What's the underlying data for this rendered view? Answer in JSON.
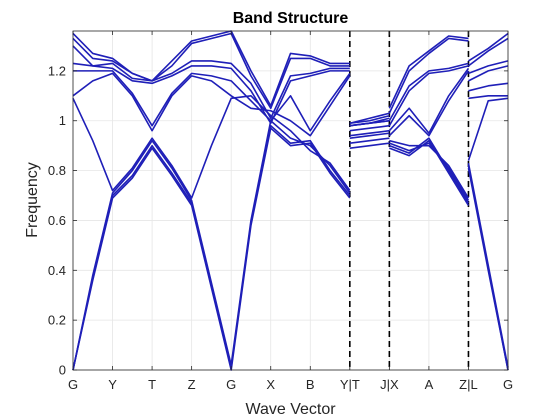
{
  "chart_data": {
    "type": "line",
    "title": "Band Structure",
    "xlabel": "Wave Vector",
    "ylabel": "Frequency",
    "ylim": [
      0,
      1.36
    ],
    "yticks": [
      0,
      0.2,
      0.4,
      0.6,
      0.8,
      1,
      1.2
    ],
    "ytick_labels": [
      "0",
      "0.2",
      "0.4",
      "0.6",
      "0.8",
      "1",
      "1.2"
    ],
    "x_points": [
      0,
      1,
      2,
      3,
      4,
      5,
      6,
      7,
      8,
      9,
      10,
      11
    ],
    "x_tick_labels": [
      "G",
      "Y",
      "T",
      "Z",
      "G",
      "X",
      "B",
      "Y|T",
      "J|X",
      "A",
      "Z|L",
      "G"
    ],
    "discontinuities": [
      7,
      8,
      10
    ],
    "grid": true,
    "line_color": "#1f1fb8",
    "series": [
      {
        "values": [
          [
            0,
            0.0
          ],
          [
            0.5,
            0.36
          ],
          [
            1,
            0.69
          ],
          [
            1.5,
            0.77
          ],
          [
            2,
            0.89
          ],
          [
            2.5,
            0.78
          ],
          [
            3,
            0.66
          ],
          [
            3.5,
            0.33
          ],
          [
            4,
            0.0
          ],
          [
            4.5,
            0.58
          ],
          [
            5,
            0.97
          ],
          [
            5.5,
            0.9
          ],
          [
            6,
            0.91
          ],
          [
            6.5,
            0.79
          ],
          [
            7,
            0.69
          ],
          [
            7,
            0.93
          ],
          [
            7.5,
            0.94
          ],
          [
            8,
            0.95
          ],
          [
            8,
            0.89
          ],
          [
            8.5,
            0.86
          ],
          [
            9,
            0.92
          ],
          [
            9.5,
            0.79
          ],
          [
            10,
            0.66
          ],
          [
            10,
            0.81
          ],
          [
            10.5,
            0.4
          ],
          [
            11,
            0.0
          ]
        ]
      },
      {
        "values": [
          [
            0,
            0.0
          ],
          [
            0.5,
            0.37
          ],
          [
            1,
            0.7
          ],
          [
            1.5,
            0.78
          ],
          [
            2,
            0.9
          ],
          [
            2.5,
            0.79
          ],
          [
            3,
            0.67
          ],
          [
            3.5,
            0.34
          ],
          [
            4,
            0.01
          ],
          [
            4.5,
            0.59
          ],
          [
            5,
            0.98
          ],
          [
            5.5,
            0.91
          ],
          [
            6,
            0.92
          ],
          [
            6.5,
            0.8
          ],
          [
            7,
            0.7
          ],
          [
            7,
            0.94
          ],
          [
            7.5,
            0.95
          ],
          [
            8,
            0.96
          ],
          [
            8,
            0.9
          ],
          [
            8.5,
            0.87
          ],
          [
            9,
            0.93
          ],
          [
            9.5,
            0.8
          ],
          [
            10,
            0.67
          ],
          [
            10,
            0.82
          ],
          [
            10.5,
            0.41
          ],
          [
            11,
            0.0
          ]
        ]
      },
      {
        "values": [
          [
            0,
            0.0
          ],
          [
            0.5,
            0.38
          ],
          [
            1,
            0.71
          ],
          [
            1.5,
            0.8
          ],
          [
            2,
            0.92
          ],
          [
            2.5,
            0.81
          ],
          [
            3,
            0.68
          ],
          [
            3.5,
            0.35
          ],
          [
            4,
            0.02
          ],
          [
            4.5,
            0.6
          ],
          [
            5,
            1.0
          ],
          [
            5.5,
            0.93
          ],
          [
            6,
            0.9
          ],
          [
            6.5,
            0.82
          ],
          [
            7,
            0.71
          ],
          [
            7,
            0.96
          ],
          [
            7.5,
            0.97
          ],
          [
            8,
            0.98
          ],
          [
            8,
            0.91
          ],
          [
            8.5,
            0.88
          ],
          [
            9,
            0.91
          ],
          [
            9.5,
            0.81
          ],
          [
            10,
            0.68
          ],
          [
            10,
            0.83
          ],
          [
            10.5,
            0.42
          ],
          [
            11,
            0.01
          ]
        ]
      },
      {
        "values": [
          [
            0,
            1.09
          ],
          [
            0.5,
            0.92
          ],
          [
            1,
            0.72
          ],
          [
            1.5,
            0.81
          ],
          [
            2,
            0.93
          ],
          [
            2.5,
            0.82
          ],
          [
            3,
            0.69
          ],
          [
            3.5,
            0.9
          ],
          [
            4,
            1.09
          ],
          [
            4.5,
            1.1
          ],
          [
            5,
            1.02
          ],
          [
            5.5,
            0.96
          ],
          [
            6,
            0.88
          ],
          [
            6.5,
            0.83
          ],
          [
            7,
            0.72
          ],
          [
            7,
            0.98
          ],
          [
            7.5,
            0.99
          ],
          [
            8,
            1.0
          ],
          [
            8,
            0.92
          ],
          [
            8.5,
            0.9
          ],
          [
            9,
            0.9
          ],
          [
            9.5,
            0.82
          ],
          [
            10,
            0.69
          ],
          [
            10,
            0.84
          ],
          [
            10.5,
            1.08
          ],
          [
            11,
            1.09
          ]
        ]
      },
      {
        "values": [
          [
            0,
            1.1
          ],
          [
            0.5,
            1.16
          ],
          [
            1,
            1.19
          ],
          [
            1.5,
            1.1
          ],
          [
            2,
            0.96
          ],
          [
            2.5,
            1.1
          ],
          [
            3,
            1.18
          ],
          [
            3.5,
            1.16
          ],
          [
            4,
            1.1
          ],
          [
            4.5,
            1.05
          ],
          [
            5,
            1.04
          ],
          [
            5.5,
            1.0
          ],
          [
            6,
            0.94
          ],
          [
            6.5,
            1.06
          ],
          [
            7,
            1.18
          ],
          [
            7,
            0.91
          ],
          [
            7.5,
            0.92
          ],
          [
            8,
            0.93
          ],
          [
            8,
            0.94
          ],
          [
            8.5,
            1.02
          ],
          [
            9,
            0.94
          ],
          [
            9.5,
            1.08
          ],
          [
            10,
            1.2
          ],
          [
            10,
            1.09
          ],
          [
            10.5,
            1.1
          ],
          [
            11,
            1.1
          ]
        ]
      },
      {
        "values": [
          [
            0,
            1.2
          ],
          [
            0.5,
            1.2
          ],
          [
            1,
            1.2
          ],
          [
            1.5,
            1.11
          ],
          [
            2,
            0.98
          ],
          [
            2.5,
            1.11
          ],
          [
            3,
            1.19
          ],
          [
            3.5,
            1.18
          ],
          [
            4,
            1.16
          ],
          [
            4.5,
            1.08
          ],
          [
            5,
            1.0
          ],
          [
            5.5,
            1.1
          ],
          [
            6,
            0.96
          ],
          [
            6.5,
            1.08
          ],
          [
            7,
            1.19
          ],
          [
            7,
            0.89
          ],
          [
            7.5,
            0.9
          ],
          [
            8,
            0.91
          ],
          [
            8,
            0.96
          ],
          [
            8.5,
            1.05
          ],
          [
            9,
            0.95
          ],
          [
            9.5,
            1.1
          ],
          [
            10,
            1.21
          ],
          [
            10,
            1.12
          ],
          [
            10.5,
            1.14
          ],
          [
            11,
            1.15
          ]
        ]
      },
      {
        "values": [
          [
            0,
            1.23
          ],
          [
            0.5,
            1.22
          ],
          [
            1,
            1.21
          ],
          [
            1.5,
            1.16
          ],
          [
            2,
            1.15
          ],
          [
            2.5,
            1.18
          ],
          [
            3,
            1.22
          ],
          [
            3.5,
            1.22
          ],
          [
            4,
            1.21
          ],
          [
            4.5,
            1.12
          ],
          [
            5,
            0.99
          ],
          [
            5.5,
            1.16
          ],
          [
            6,
            1.18
          ],
          [
            6.5,
            1.2
          ],
          [
            7,
            1.2
          ],
          [
            7,
            0.99
          ],
          [
            7.5,
            1.0
          ],
          [
            8,
            1.02
          ],
          [
            8,
            0.98
          ],
          [
            8.5,
            1.12
          ],
          [
            9,
            1.19
          ],
          [
            9.5,
            1.2
          ],
          [
            10,
            1.22
          ],
          [
            10,
            1.16
          ],
          [
            10.5,
            1.2
          ],
          [
            11,
            1.22
          ]
        ]
      },
      {
        "values": [
          [
            0,
            1.3
          ],
          [
            0.5,
            1.22
          ],
          [
            1,
            1.23
          ],
          [
            1.5,
            1.17
          ],
          [
            2,
            1.16
          ],
          [
            2.5,
            1.19
          ],
          [
            3,
            1.24
          ],
          [
            3.5,
            1.24
          ],
          [
            4,
            1.23
          ],
          [
            4.5,
            1.15
          ],
          [
            5,
            1.01
          ],
          [
            5.5,
            1.18
          ],
          [
            6,
            1.19
          ],
          [
            6.5,
            1.21
          ],
          [
            7,
            1.21
          ],
          [
            7,
            0.98
          ],
          [
            7.5,
            0.99
          ],
          [
            8,
            1.01
          ],
          [
            8,
            1.0
          ],
          [
            8.5,
            1.14
          ],
          [
            9,
            1.2
          ],
          [
            9.5,
            1.21
          ],
          [
            10,
            1.23
          ],
          [
            10,
            1.19
          ],
          [
            10.5,
            1.22
          ],
          [
            11,
            1.24
          ]
        ]
      },
      {
        "values": [
          [
            0,
            1.33
          ],
          [
            0.5,
            1.25
          ],
          [
            1,
            1.24
          ],
          [
            1.5,
            1.19
          ],
          [
            2,
            1.16
          ],
          [
            2.5,
            1.22
          ],
          [
            3,
            1.31
          ],
          [
            3.5,
            1.33
          ],
          [
            4,
            1.35
          ],
          [
            4.5,
            1.18
          ],
          [
            5,
            1.05
          ],
          [
            5.5,
            1.25
          ],
          [
            6,
            1.25
          ],
          [
            6.5,
            1.22
          ],
          [
            7,
            1.22
          ],
          [
            7,
            0.99
          ],
          [
            7.5,
            1.01
          ],
          [
            8,
            1.03
          ],
          [
            8,
            1.03
          ],
          [
            8.5,
            1.2
          ],
          [
            9,
            1.27
          ],
          [
            9.5,
            1.33
          ],
          [
            10,
            1.32
          ],
          [
            10,
            1.22
          ],
          [
            10.5,
            1.28
          ],
          [
            11,
            1.33
          ]
        ]
      },
      {
        "values": [
          [
            0,
            1.35
          ],
          [
            0.5,
            1.27
          ],
          [
            1,
            1.25
          ],
          [
            1.5,
            1.19
          ],
          [
            2,
            1.16
          ],
          [
            2.5,
            1.24
          ],
          [
            3,
            1.32
          ],
          [
            3.5,
            1.34
          ],
          [
            4,
            1.36
          ],
          [
            4.5,
            1.2
          ],
          [
            5,
            1.06
          ],
          [
            5.5,
            1.27
          ],
          [
            6,
            1.26
          ],
          [
            6.5,
            1.23
          ],
          [
            7,
            1.23
          ],
          [
            7,
            0.98
          ],
          [
            7.5,
            0.99
          ],
          [
            8,
            1.0
          ],
          [
            8,
            1.05
          ],
          [
            8.5,
            1.22
          ],
          [
            9,
            1.28
          ],
          [
            9.5,
            1.34
          ],
          [
            10,
            1.33
          ],
          [
            10,
            1.24
          ],
          [
            10.5,
            1.29
          ],
          [
            11,
            1.35
          ]
        ]
      }
    ]
  }
}
